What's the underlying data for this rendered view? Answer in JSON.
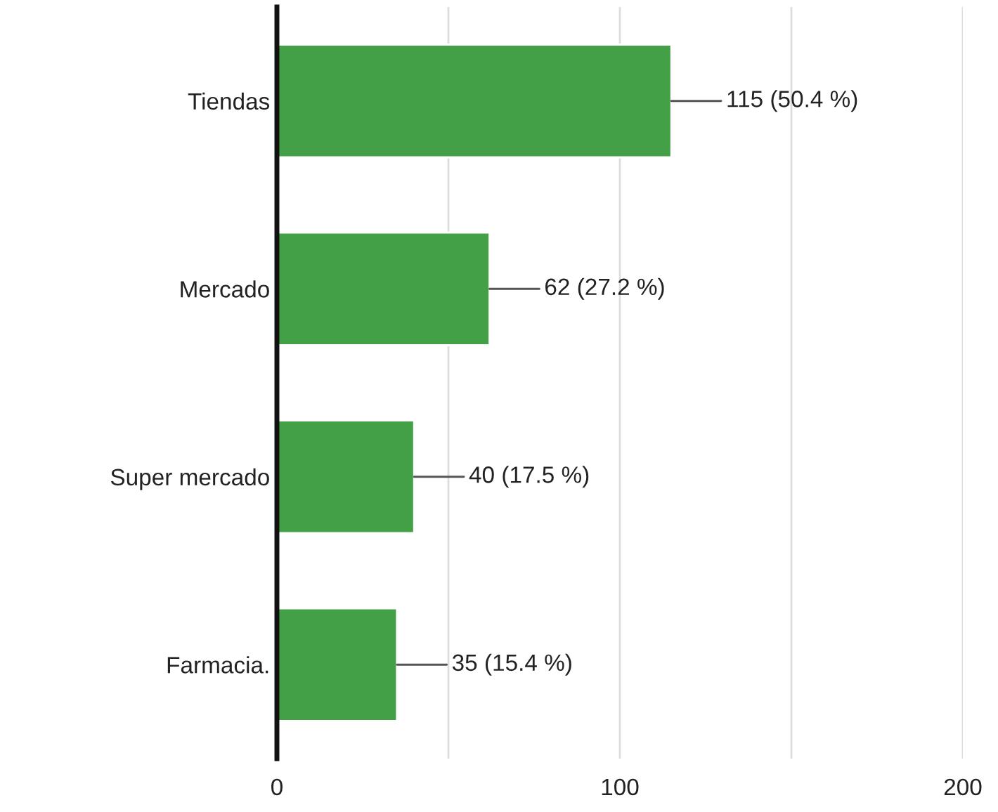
{
  "chart_data": {
    "type": "bar",
    "orientation": "horizontal",
    "categories": [
      "Tiendas",
      "Mercado",
      "Super mercado",
      "Farmacia."
    ],
    "values": [
      115,
      62,
      40,
      35
    ],
    "color": "#43a047",
    "value_labels": [
      "115 (50.4 %)",
      "62 (27.2 %)",
      "40 (17.5 %)",
      "35 (15.4 %)"
    ],
    "xlim": [
      0,
      200
    ],
    "xticks": [
      0,
      {
        "value": 50,
        "label": null
      },
      100,
      {
        "value": 150,
        "label": null
      },
      200
    ],
    "grid": "x",
    "legend": false
  }
}
